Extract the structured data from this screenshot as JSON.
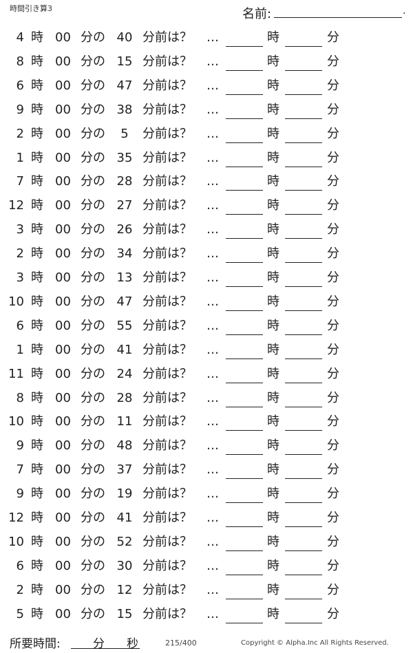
{
  "header": {
    "title": "時間引き算3",
    "name_label": "名前:",
    "name_end": "."
  },
  "labels": {
    "hour_unit": "時",
    "zero_minutes": "00",
    "minute_of": "分の",
    "minutes_before": "分前は？",
    "ellipsis": "…",
    "answer_hour_unit": "時",
    "answer_minute_unit": "分"
  },
  "problems": [
    {
      "hour": "4",
      "minutes": "40"
    },
    {
      "hour": "8",
      "minutes": "15"
    },
    {
      "hour": "6",
      "minutes": "47"
    },
    {
      "hour": "9",
      "minutes": "38"
    },
    {
      "hour": "2",
      "minutes": "5"
    },
    {
      "hour": "1",
      "minutes": "35"
    },
    {
      "hour": "7",
      "minutes": "28"
    },
    {
      "hour": "12",
      "minutes": "27"
    },
    {
      "hour": "3",
      "minutes": "26"
    },
    {
      "hour": "2",
      "minutes": "34"
    },
    {
      "hour": "3",
      "minutes": "13"
    },
    {
      "hour": "10",
      "minutes": "47"
    },
    {
      "hour": "6",
      "minutes": "55"
    },
    {
      "hour": "1",
      "minutes": "41"
    },
    {
      "hour": "11",
      "minutes": "24"
    },
    {
      "hour": "8",
      "minutes": "28"
    },
    {
      "hour": "10",
      "minutes": "11"
    },
    {
      "hour": "9",
      "minutes": "48"
    },
    {
      "hour": "7",
      "minutes": "37"
    },
    {
      "hour": "9",
      "minutes": "19"
    },
    {
      "hour": "12",
      "minutes": "41"
    },
    {
      "hour": "10",
      "minutes": "52"
    },
    {
      "hour": "6",
      "minutes": "30"
    },
    {
      "hour": "2",
      "minutes": "12"
    },
    {
      "hour": "5",
      "minutes": "15"
    }
  ],
  "footer": {
    "time_label": "所要時間:",
    "minute_unit": "分",
    "second_unit": "秒",
    "page": "215/400",
    "copyright": "Copyright ©  Alpha.Inc All Rights Reserved."
  }
}
